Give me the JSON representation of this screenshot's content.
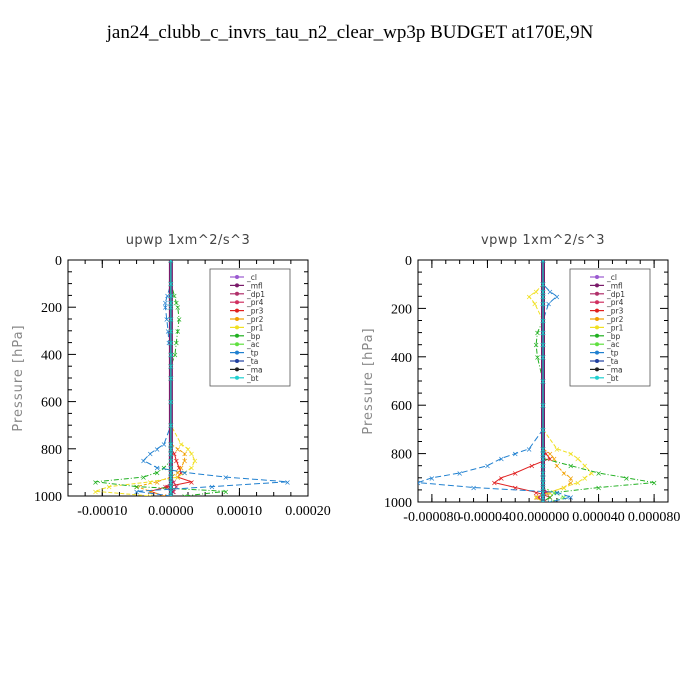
{
  "page": {
    "title": "jan24_clubb_c_invrs_tau_n2_clear_wp3p  BUDGET at170E,9N"
  },
  "colors": {
    "_cl": "#9b59d0",
    "_mfl": "#7a1a6a",
    "_dp1": "#b0306a",
    "_pr4": "#d03060",
    "_pr3": "#e02020",
    "_pr2": "#f0a000",
    "_pr1": "#f0e020",
    "_bp": "#20b020",
    "_ac": "#60e040",
    "_tp": "#2080d0",
    "_ta": "#2040a0",
    "_ma": "#202020",
    "_bt": "#20d0d0"
  },
  "chart_data": [
    {
      "type": "line",
      "title": "upwp   1xm^2/s^3",
      "ylabel": "Pressure [hPa]",
      "xlabel": "",
      "xlim": [
        -0.00015,
        0.0002
      ],
      "ylim": [
        1000,
        0
      ],
      "xticks": [
        -0.0001,
        0.0,
        0.0001,
        0.0002
      ],
      "xtick_labels": [
        "-0.00010",
        "0.00000",
        "0.00010",
        "0.00020"
      ],
      "yticks": [
        0,
        200,
        400,
        600,
        800,
        1000
      ],
      "ytick_labels": [
        "0",
        "200",
        "400",
        "600",
        "800",
        "1000"
      ],
      "legend_position": "top-right",
      "legend": [
        "_cl",
        "_mfl",
        "_dp1",
        "_pr4",
        "_pr3",
        "_pr2",
        "_pr1",
        "_bp",
        "_ac",
        "_tp",
        "_ta",
        "_ma",
        "_bt"
      ],
      "y": [
        0,
        100,
        150,
        180,
        200,
        250,
        300,
        350,
        400,
        450,
        500,
        600,
        700,
        780,
        800,
        820,
        850,
        880,
        900,
        920,
        940,
        960,
        980,
        1000
      ],
      "series": [
        {
          "name": "_cl",
          "values": [
            0,
            0,
            0,
            0,
            0,
            0,
            0,
            0,
            0,
            0,
            0,
            0,
            0,
            0,
            0,
            0,
            0,
            0,
            0,
            0,
            0,
            0,
            0,
            0
          ]
        },
        {
          "name": "_mfl",
          "values": [
            0,
            0,
            0,
            0,
            0,
            0,
            0,
            0,
            0,
            0,
            0,
            0,
            0,
            0,
            0,
            0,
            0,
            0,
            0,
            0,
            0,
            0,
            0,
            0
          ]
        },
        {
          "name": "_dp1",
          "values": [
            0,
            0,
            0,
            0,
            0,
            0,
            0,
            0,
            0,
            0,
            0,
            0,
            0,
            0,
            0,
            0,
            0,
            0,
            0,
            0,
            4e-06,
            8e-06,
            3e-06,
            0
          ]
        },
        {
          "name": "_pr4",
          "values": [
            0,
            0,
            0,
            0,
            0,
            0,
            0,
            0,
            0,
            0,
            0,
            0,
            0,
            0,
            0,
            0,
            0,
            0,
            0,
            0,
            4e-06,
            -8e-06,
            4e-06,
            0
          ]
        },
        {
          "name": "_pr3",
          "values": [
            0,
            0,
            0,
            0,
            0,
            0,
            0,
            0,
            0,
            0,
            0,
            0,
            0,
            0,
            0,
            5e-06,
            8e-06,
            1.2e-05,
            1.5e-05,
            1e-05,
            3e-05,
            -5e-06,
            -3e-05,
            -1e-05
          ]
        },
        {
          "name": "_pr2",
          "values": [
            0,
            0,
            0,
            0,
            0,
            0,
            0,
            0,
            0,
            0,
            0,
            0,
            0,
            0,
            1e-05,
            2e-05,
            2e-05,
            1.5e-05,
            1e-05,
            0,
            -2e-05,
            -5e-05,
            -3e-05,
            -1e-05
          ]
        },
        {
          "name": "_pr1",
          "values": [
            0,
            0,
            0,
            0,
            0,
            0,
            0,
            0,
            0,
            0,
            0,
            0,
            0,
            1.5e-05,
            2.5e-05,
            3e-05,
            3.5e-05,
            3e-05,
            2e-05,
            1e-05,
            -3e-05,
            -9e-05,
            -0.00011,
            -3e-05
          ]
        },
        {
          "name": "_bp",
          "values": [
            0,
            0,
            5e-06,
            8e-06,
            1e-05,
            1.2e-05,
            1e-05,
            8e-06,
            6e-06,
            0,
            0,
            0,
            0,
            0,
            0,
            0,
            0,
            -1e-05,
            -2e-05,
            -4e-05,
            -0.00011,
            -5e-05,
            8e-05,
            2e-05
          ]
        },
        {
          "name": "_ac",
          "values": [
            0,
            0,
            0,
            0,
            0,
            0,
            0,
            0,
            0,
            0,
            0,
            0,
            0,
            0,
            0,
            0,
            0,
            0,
            0,
            0,
            0,
            0,
            0,
            0
          ]
        },
        {
          "name": "_tp",
          "values": [
            0,
            0,
            -5e-06,
            -8e-06,
            -8e-06,
            -6e-06,
            -4e-06,
            -3e-06,
            0,
            0,
            0,
            0,
            0,
            -1e-05,
            -2e-05,
            -3e-05,
            -4e-05,
            -2e-05,
            2e-05,
            8e-05,
            0.00017,
            6e-05,
            -5e-05,
            0
          ]
        },
        {
          "name": "_ta",
          "values": [
            0,
            0,
            0,
            0,
            0,
            0,
            0,
            0,
            0,
            0,
            0,
            0,
            0,
            0,
            0,
            0,
            0,
            0,
            0,
            0,
            0,
            0,
            0,
            0
          ]
        },
        {
          "name": "_ma",
          "values": [
            0,
            0,
            0,
            0,
            0,
            0,
            0,
            0,
            0,
            0,
            0,
            0,
            0,
            0,
            0,
            0,
            0,
            0,
            0,
            0,
            0,
            0,
            0,
            0
          ]
        },
        {
          "name": "_bt",
          "values": [
            0,
            0,
            0,
            0,
            0,
            0,
            0,
            0,
            0,
            0,
            0,
            0,
            0,
            0,
            0,
            0,
            0,
            0,
            0,
            0,
            0,
            0,
            0,
            0
          ]
        }
      ]
    },
    {
      "type": "line",
      "title": "vpwp   1xm^2/s^3",
      "ylabel": "Pressure [hPa]",
      "xlabel": "",
      "xlim": [
        -9e-05,
        9e-05
      ],
      "ylim": [
        1000,
        0
      ],
      "xticks": [
        -8e-05,
        -4e-05,
        0.0,
        4e-05,
        8e-05
      ],
      "xtick_labels": [
        "-0.000080",
        "-0.000040",
        "0.000000",
        "0.000040",
        "0.000080"
      ],
      "yticks": [
        0,
        200,
        400,
        600,
        800,
        1000
      ],
      "ytick_labels": [
        "0",
        "200",
        "400",
        "600",
        "800",
        "1000"
      ],
      "legend_position": "top-right",
      "legend": [
        "_cl",
        "_mfl",
        "_dp1",
        "_pr4",
        "_pr3",
        "_pr2",
        "_pr1",
        "_bp",
        "_ac",
        "_tp",
        "_ta",
        "_ma",
        "_bt"
      ],
      "y": [
        0,
        100,
        130,
        150,
        180,
        250,
        300,
        350,
        400,
        500,
        600,
        700,
        780,
        800,
        820,
        850,
        880,
        900,
        920,
        940,
        960,
        980,
        1000
      ],
      "series": [
        {
          "name": "_cl",
          "values": [
            0,
            0,
            0,
            0,
            0,
            0,
            0,
            0,
            0,
            0,
            0,
            0,
            0,
            0,
            0,
            0,
            0,
            0,
            0,
            0,
            0,
            0,
            0
          ]
        },
        {
          "name": "_mfl",
          "values": [
            0,
            0,
            0,
            0,
            0,
            0,
            0,
            0,
            0,
            0,
            0,
            0,
            0,
            0,
            0,
            0,
            0,
            0,
            0,
            0,
            0,
            0,
            0
          ]
        },
        {
          "name": "_dp1",
          "values": [
            0,
            0,
            0,
            0,
            0,
            0,
            0,
            0,
            0,
            0,
            0,
            0,
            0,
            0,
            0,
            0,
            0,
            0,
            0,
            0,
            2e-06,
            -3e-06,
            0
          ]
        },
        {
          "name": "_pr4",
          "values": [
            0,
            0,
            0,
            0,
            0,
            0,
            0,
            0,
            0,
            0,
            0,
            0,
            0,
            0,
            0,
            0,
            0,
            0,
            0,
            0,
            3e-06,
            -4e-06,
            0
          ]
        },
        {
          "name": "_pr3",
          "values": [
            0,
            0,
            0,
            0,
            0,
            0,
            0,
            0,
            0,
            0,
            0,
            0,
            0,
            2e-06,
            5e-06,
            -8e-06,
            -2e-05,
            -3e-05,
            -3.5e-05,
            -2e-05,
            -5e-06,
            5e-06,
            0
          ]
        },
        {
          "name": "_pr2",
          "values": [
            0,
            0,
            0,
            0,
            0,
            0,
            0,
            0,
            0,
            0,
            0,
            0,
            0,
            5e-06,
            8e-06,
            1e-05,
            1.5e-05,
            2e-05,
            2e-05,
            1.5e-05,
            5e-06,
            -5e-06,
            0
          ]
        },
        {
          "name": "_pr1",
          "values": [
            0,
            0,
            -5e-06,
            -1e-05,
            -6e-06,
            0,
            0,
            0,
            0,
            0,
            0,
            0,
            1e-05,
            2e-05,
            2.5e-05,
            3e-05,
            3.5e-05,
            3e-05,
            2.5e-05,
            1.5e-05,
            5e-06,
            -5e-06,
            0
          ]
        },
        {
          "name": "_bp",
          "values": [
            0,
            0,
            0,
            0,
            0,
            0,
            -4e-06,
            -5e-06,
            -4e-06,
            0,
            0,
            0,
            0,
            0,
            0,
            2e-05,
            4e-05,
            6e-05,
            8e-05,
            4e-05,
            1e-05,
            5e-06,
            0
          ]
        },
        {
          "name": "_ac",
          "values": [
            0,
            0,
            0,
            0,
            0,
            0,
            0,
            0,
            0,
            0,
            0,
            0,
            0,
            0,
            0,
            0,
            0,
            0,
            0,
            0,
            8e-06,
            1.5e-05,
            5e-06
          ]
        },
        {
          "name": "_tp",
          "values": [
            0,
            0,
            5e-06,
            1e-05,
            4e-06,
            0,
            0,
            0,
            0,
            0,
            0,
            0,
            -1e-05,
            -2e-05,
            -3e-05,
            -4e-05,
            -6e-05,
            -8e-05,
            -9e-05,
            -5e-05,
            1e-05,
            2e-05,
            5e-06
          ]
        },
        {
          "name": "_ta",
          "values": [
            0,
            0,
            0,
            0,
            0,
            0,
            0,
            0,
            0,
            0,
            0,
            0,
            0,
            0,
            0,
            0,
            0,
            0,
            0,
            0,
            0,
            0,
            0
          ]
        },
        {
          "name": "_ma",
          "values": [
            0,
            0,
            0,
            0,
            0,
            0,
            0,
            0,
            0,
            0,
            0,
            0,
            0,
            0,
            0,
            0,
            0,
            0,
            0,
            0,
            0,
            0,
            0
          ]
        },
        {
          "name": "_bt",
          "values": [
            0,
            0,
            0,
            0,
            0,
            0,
            0,
            0,
            0,
            0,
            0,
            0,
            0,
            0,
            0,
            0,
            0,
            0,
            0,
            0,
            0,
            0,
            0
          ]
        }
      ]
    }
  ]
}
